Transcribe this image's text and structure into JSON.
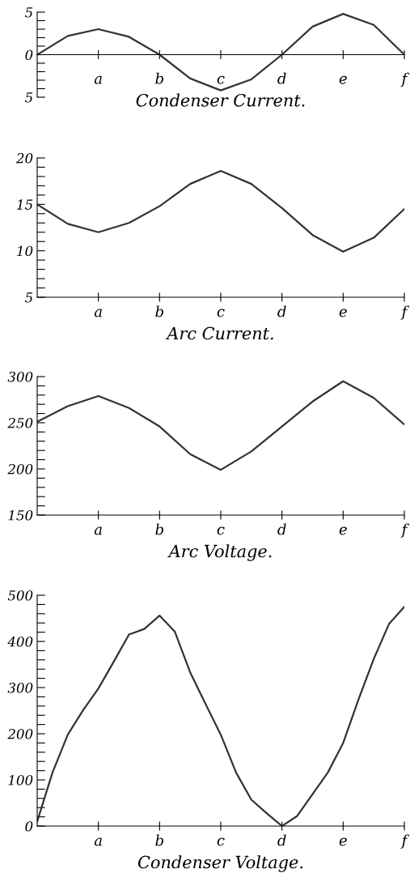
{
  "chart_data": [
    {
      "type": "line",
      "xlabel": "Condenser Current.",
      "ylim": [
        -5,
        5
      ],
      "categories": [
        null,
        null,
        "a",
        null,
        "b",
        null,
        "c",
        null,
        "d",
        null,
        "e",
        null,
        "f"
      ],
      "yticks": [
        {
          "value": -5,
          "label": "5"
        },
        {
          "value": -4,
          "label": null
        },
        {
          "value": -3,
          "label": null
        },
        {
          "value": -2,
          "label": null
        },
        {
          "value": -1,
          "label": null
        },
        0,
        {
          "value": 1,
          "label": null
        },
        {
          "value": 2,
          "label": null
        },
        {
          "value": 3,
          "label": null
        },
        {
          "value": 4,
          "label": null
        },
        5
      ],
      "series": [
        {
          "color": "#333333",
          "values": [
            0,
            2.2,
            3,
            2.1,
            0,
            -2.8,
            -4.2,
            -2.9,
            0,
            3.3,
            4.8,
            3.5,
            0
          ]
        }
      ]
    },
    {
      "type": "line",
      "xlabel": "Arc Current.",
      "ylim": [
        5,
        20
      ],
      "categories": [
        null,
        null,
        "a",
        null,
        "b",
        null,
        "c",
        null,
        "d",
        null,
        "e",
        null,
        "f"
      ],
      "yticks": [
        5,
        {
          "value": 6,
          "label": null
        },
        {
          "value": 7,
          "label": null
        },
        {
          "value": 8,
          "label": null
        },
        {
          "value": 9,
          "label": null
        },
        10,
        {
          "value": 11,
          "label": null
        },
        {
          "value": 12,
          "label": null
        },
        {
          "value": 13,
          "label": null
        },
        {
          "value": 14,
          "label": null
        },
        15,
        {
          "value": 16,
          "label": null
        },
        {
          "value": 17,
          "label": null
        },
        {
          "value": 18,
          "label": null
        },
        {
          "value": 19,
          "label": null
        },
        20
      ],
      "series": [
        {
          "color": "#333333",
          "values": [
            15,
            12.9,
            12,
            13,
            14.8,
            17.2,
            18.6,
            17.2,
            14.6,
            11.7,
            9.9,
            11.4,
            14.5
          ]
        }
      ]
    },
    {
      "type": "line",
      "xlabel": "Arc Voltage.",
      "ylim": [
        150,
        300
      ],
      "categories": [
        null,
        null,
        "a",
        null,
        "b",
        null,
        "c",
        null,
        "d",
        null,
        "e",
        null,
        "f"
      ],
      "yticks": [
        150,
        {
          "value": 160,
          "label": null
        },
        {
          "value": 170,
          "label": null
        },
        {
          "value": 180,
          "label": null
        },
        {
          "value": 190,
          "label": null
        },
        200,
        {
          "value": 210,
          "label": null
        },
        {
          "value": 220,
          "label": null
        },
        {
          "value": 230,
          "label": null
        },
        {
          "value": 240,
          "label": null
        },
        250,
        {
          "value": 260,
          "label": null
        },
        {
          "value": 270,
          "label": null
        },
        {
          "value": 280,
          "label": null
        },
        {
          "value": 290,
          "label": null
        },
        300
      ],
      "series": [
        {
          "color": "#333333",
          "values": [
            251,
            268,
            279,
            266,
            246,
            216,
            199,
            219,
            246,
            273,
            295,
            277,
            248
          ]
        }
      ]
    },
    {
      "type": "line",
      "xlabel": "Condenser Voltage.",
      "ylim": [
        0,
        500
      ],
      "categories": [
        null,
        null,
        null,
        null,
        "a",
        null,
        null,
        null,
        "b",
        null,
        null,
        null,
        "c",
        null,
        null,
        null,
        "d",
        null,
        null,
        null,
        "e",
        null,
        null,
        null,
        "f"
      ],
      "yticks": [
        0,
        {
          "value": 20,
          "label": null
        },
        {
          "value": 40,
          "label": null
        },
        {
          "value": 60,
          "label": null
        },
        {
          "value": 80,
          "label": null
        },
        100,
        {
          "value": 120,
          "label": null
        },
        {
          "value": 140,
          "label": null
        },
        {
          "value": 160,
          "label": null
        },
        {
          "value": 180,
          "label": null
        },
        200,
        {
          "value": 220,
          "label": null
        },
        {
          "value": 240,
          "label": null
        },
        {
          "value": 260,
          "label": null
        },
        {
          "value": 280,
          "label": null
        },
        300,
        {
          "value": 320,
          "label": null
        },
        {
          "value": 340,
          "label": null
        },
        {
          "value": 360,
          "label": null
        },
        {
          "value": 380,
          "label": null
        },
        400,
        {
          "value": 420,
          "label": null
        },
        {
          "value": 440,
          "label": null
        },
        {
          "value": 460,
          "label": null
        },
        {
          "value": 480,
          "label": null
        },
        500
      ],
      "series": [
        {
          "color": "#333333",
          "values": [
            10,
            116,
            198,
            251,
            298,
            356,
            415,
            427,
            456,
            421,
            333,
            265,
            198,
            116,
            57,
            28,
            0,
            22,
            69,
            116,
            180,
            274,
            362,
            438,
            475
          ]
        }
      ]
    }
  ]
}
